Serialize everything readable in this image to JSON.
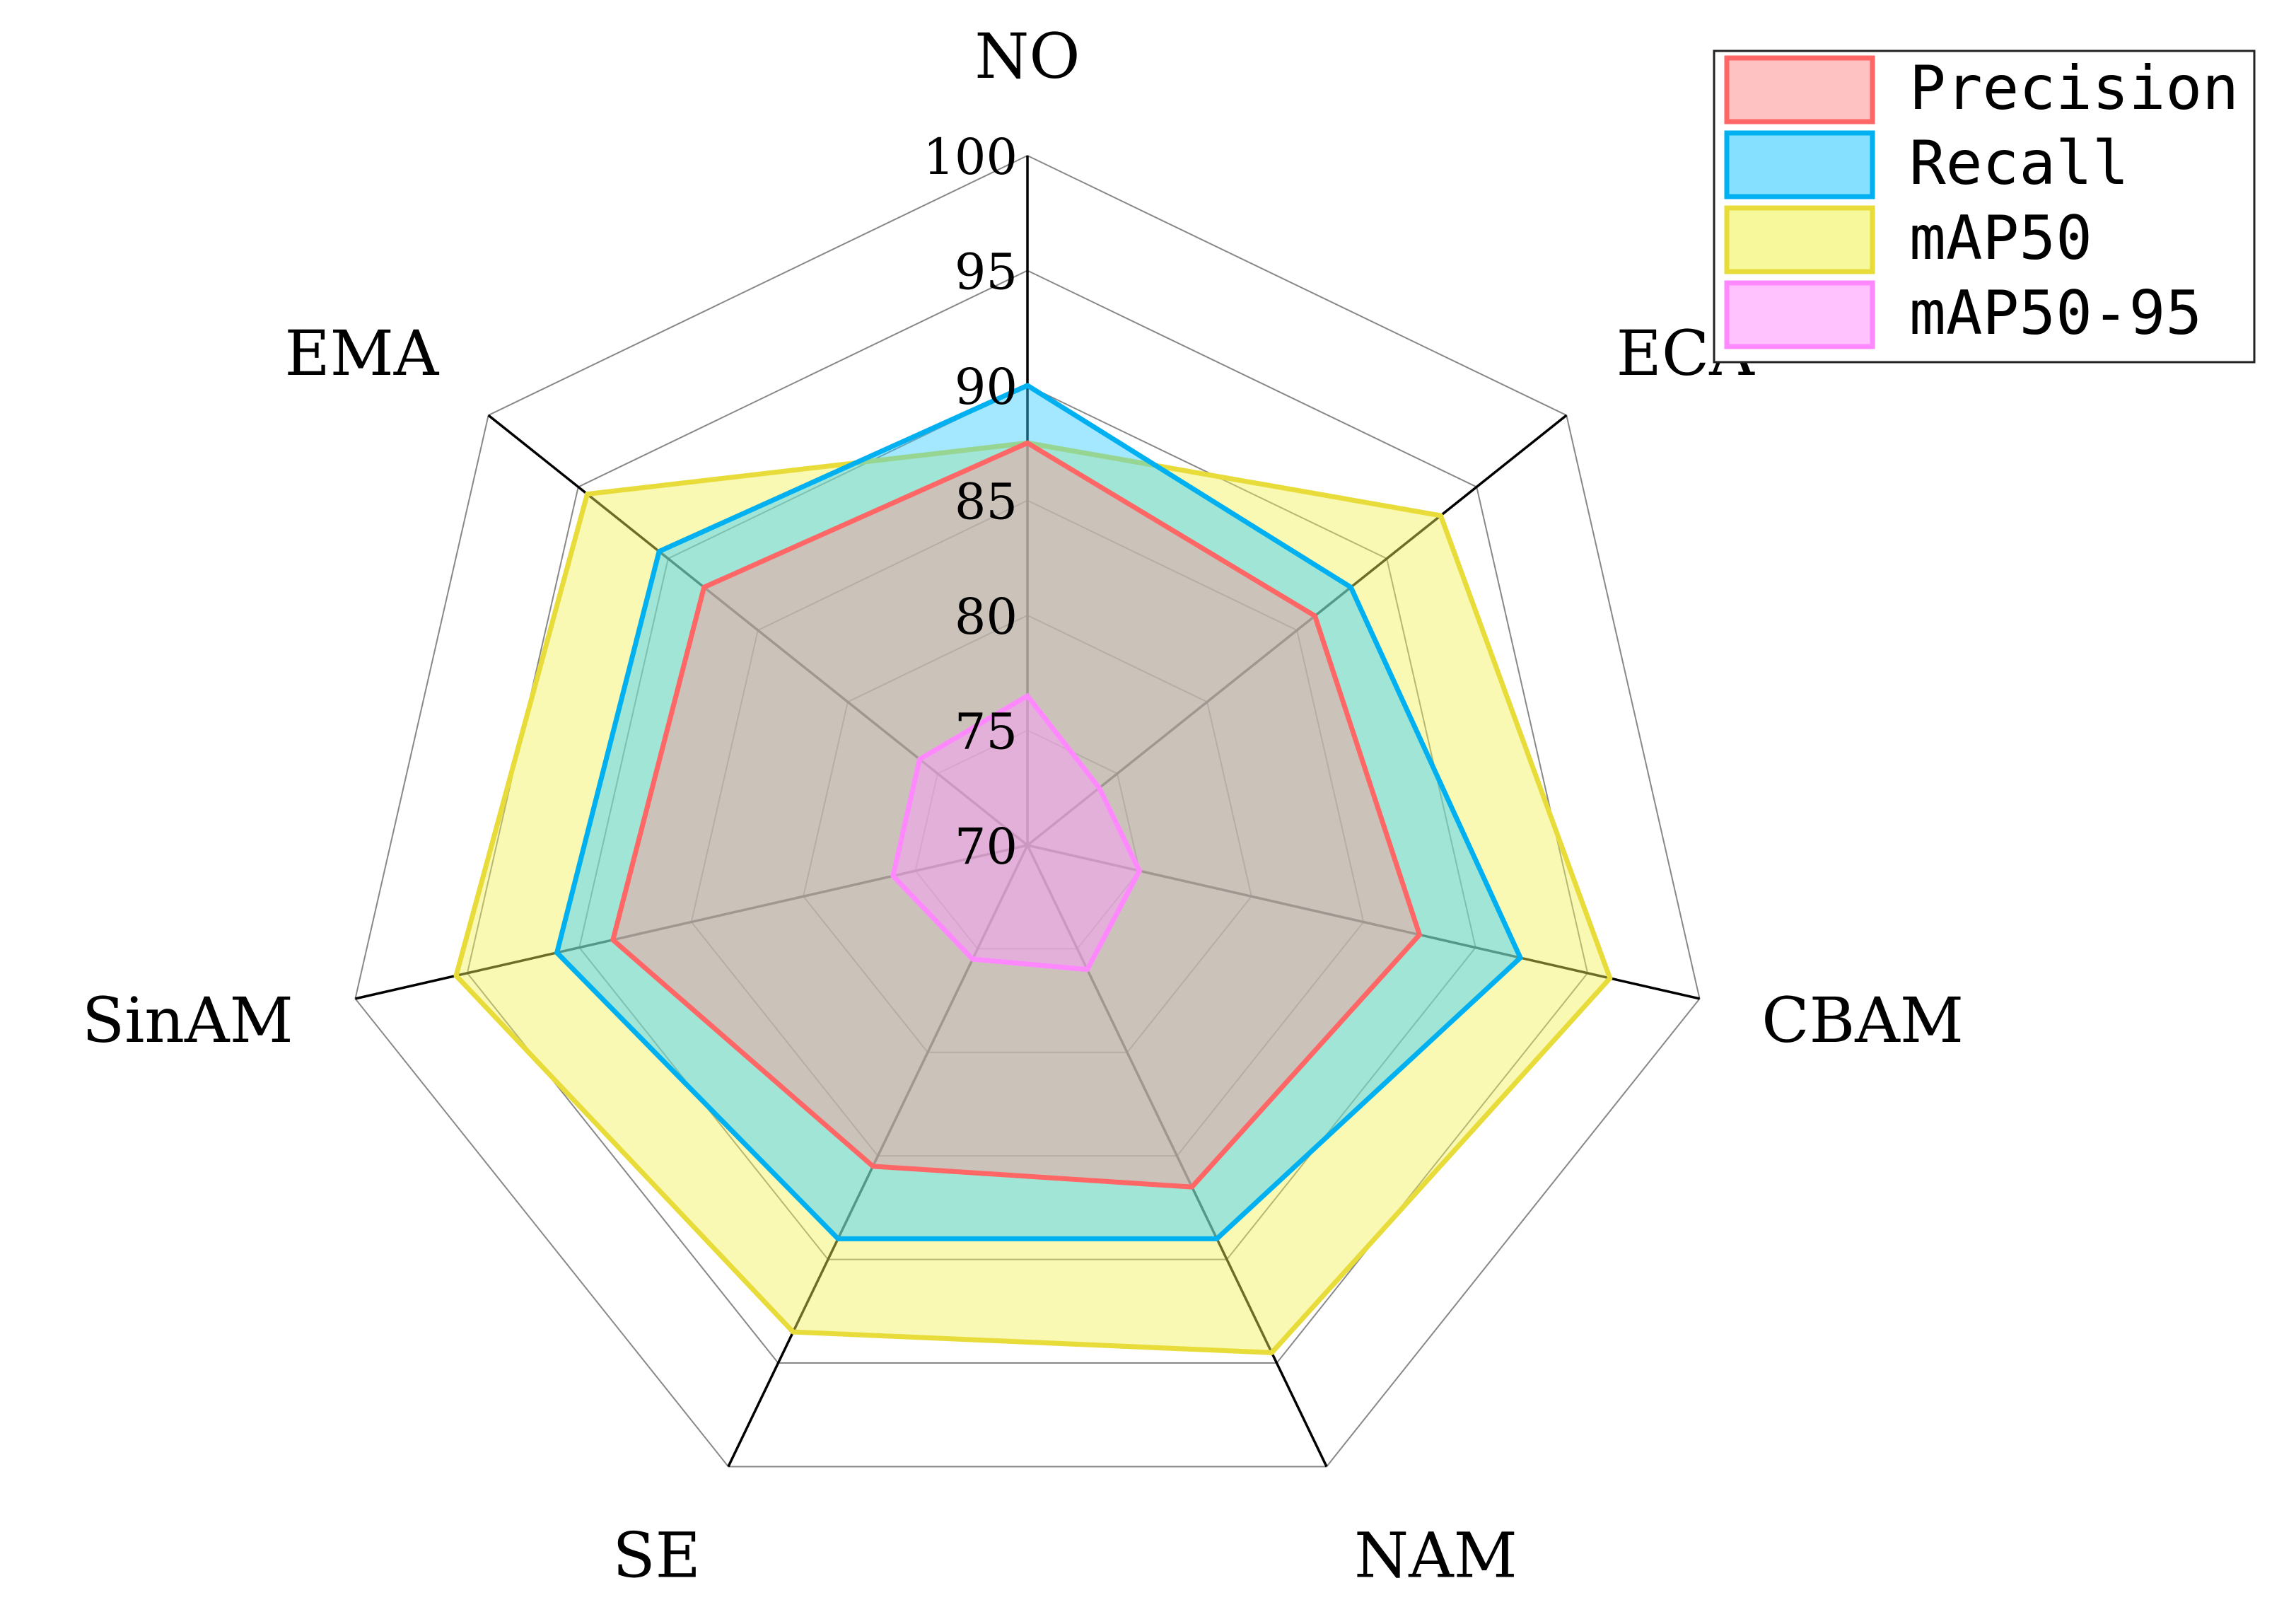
{
  "chart_data": {
    "type": "radar",
    "axes": [
      "NO",
      "ECA",
      "CBAM",
      "NAM",
      "SE",
      "SinAM",
      "EMA"
    ],
    "r_ticks": [
      70,
      75,
      80,
      85,
      90,
      95,
      100
    ],
    "rlim": [
      70,
      100
    ],
    "grid": true,
    "legend_position": "top-right",
    "series": [
      {
        "name": "Precision",
        "values": [
          87.5,
          86.0,
          87.5,
          86.5,
          85.5,
          88.5,
          88.0
        ],
        "fill": "#ff9999",
        "stroke": "#ff6666"
      },
      {
        "name": "Recall",
        "values": [
          90.0,
          88.0,
          92.0,
          89.0,
          89.0,
          91.0,
          90.5
        ],
        "fill": "#33ccff",
        "stroke": "#00b0f0"
      },
      {
        "name": "mAP50",
        "values": [
          87.5,
          93.0,
          96.0,
          94.5,
          93.5,
          95.5,
          94.5
        ],
        "fill": "#f2f258",
        "stroke": "#e8dc3a"
      },
      {
        "name": "mAP50-95",
        "values": [
          76.5,
          74.0,
          75.0,
          76.0,
          75.5,
          76.0,
          76.0
        ],
        "fill": "#ff99ff",
        "stroke": "#ff88ff"
      }
    ]
  }
}
